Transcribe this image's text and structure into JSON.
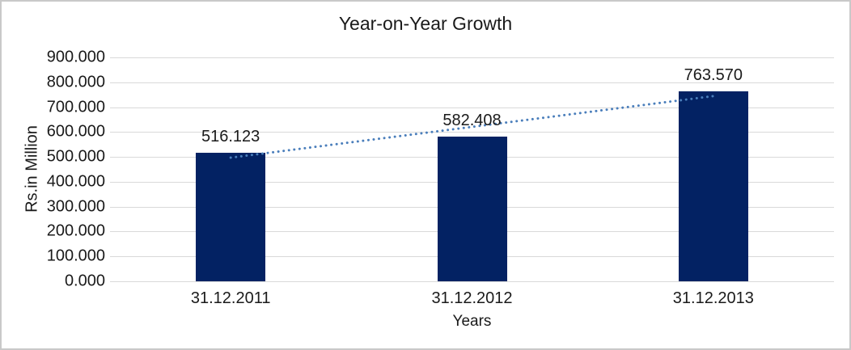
{
  "chart_data": {
    "type": "bar",
    "title": "Year-on-Year Growth",
    "xlabel": "Years",
    "ylabel": "Rs.in Million",
    "categories": [
      "31.12.2011",
      "31.12.2012",
      "31.12.2013"
    ],
    "values": [
      516.123,
      582.408,
      763.57
    ],
    "value_labels": [
      "516.123",
      "582.408",
      "763.570"
    ],
    "ylim": [
      0,
      900
    ],
    "ytick_step": 100,
    "ytick_labels": [
      "0.000",
      "100.000",
      "200.000",
      "300.000",
      "400.000",
      "500.000",
      "600.000",
      "700.000",
      "800.000",
      "900.000"
    ],
    "grid": true,
    "legend": "none",
    "trendline": {
      "type": "linear",
      "style": "dotted"
    },
    "colors": {
      "bar": "#032263",
      "trendline": "#4a7ebb",
      "gridline": "#d9d9d9",
      "text": "#1a1a1a",
      "background": "#ffffff",
      "border": "#c9c9c9"
    }
  }
}
